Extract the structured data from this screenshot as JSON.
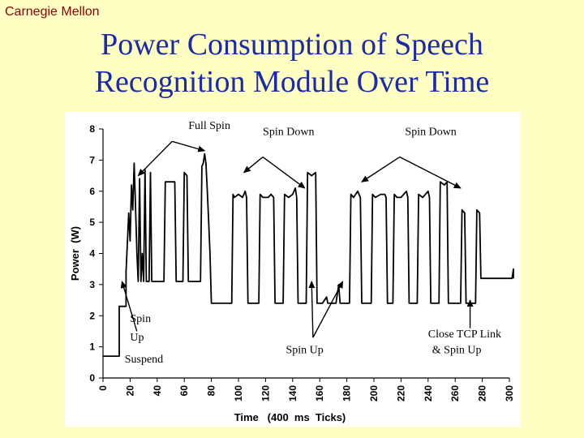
{
  "header": {
    "brand": "Carnegie Mellon",
    "title_line1": "Power Consumption of Speech",
    "title_line2": "Recognition Module Over Time"
  },
  "colors": {
    "title": "#1a2aa8",
    "brand": "#8b0000",
    "background": "#ffffc4",
    "line": "#000000"
  },
  "chart_data": {
    "type": "line",
    "xlabel": "Time   (400  ms  Ticks)",
    "ylabel": "Power  (W)",
    "xlim": [
      0,
      300
    ],
    "ylim": [
      0,
      8
    ],
    "xticks": [
      0,
      20,
      40,
      60,
      80,
      100,
      120,
      140,
      160,
      180,
      200,
      220,
      240,
      260,
      280,
      300
    ],
    "yticks": [
      0,
      1,
      2,
      3,
      4,
      5,
      6,
      7,
      8
    ],
    "grid": false,
    "series": [
      {
        "points": [
          [
            0,
            0.7
          ],
          [
            12,
            0.7
          ],
          [
            12,
            2.3
          ],
          [
            17,
            2.3
          ],
          [
            17,
            3.4
          ],
          [
            19,
            5.3
          ],
          [
            20,
            4.4
          ],
          [
            21,
            6.2
          ],
          [
            22,
            5.4
          ],
          [
            23,
            6.9
          ],
          [
            24,
            5.5
          ],
          [
            25,
            4.0
          ],
          [
            26,
            3.1
          ],
          [
            27,
            6.4
          ],
          [
            28,
            3.1
          ],
          [
            29,
            4.0
          ],
          [
            30,
            3.1
          ],
          [
            31,
            6.7
          ],
          [
            32,
            3.1
          ],
          [
            34,
            3.1
          ],
          [
            35,
            6.6
          ],
          [
            36,
            3.1
          ],
          [
            45,
            3.1
          ],
          [
            46,
            6.3
          ],
          [
            53,
            6.3
          ],
          [
            54,
            3.1
          ],
          [
            59,
            3.1
          ],
          [
            60,
            6.6
          ],
          [
            62,
            6.5
          ],
          [
            63,
            3.1
          ],
          [
            72,
            3.1
          ],
          [
            73,
            6.8
          ],
          [
            74,
            6.9
          ],
          [
            75,
            7.2
          ],
          [
            76,
            6.9
          ],
          [
            77,
            6.0
          ],
          [
            78,
            5.0
          ],
          [
            79,
            4.0
          ],
          [
            80,
            2.4
          ],
          [
            95,
            2.4
          ],
          [
            96,
            5.9
          ],
          [
            97,
            5.8
          ],
          [
            100,
            5.9
          ],
          [
            103,
            5.8
          ],
          [
            105,
            6.0
          ],
          [
            106,
            5.8
          ],
          [
            107,
            2.4
          ],
          [
            115,
            2.4
          ],
          [
            116,
            5.9
          ],
          [
            118,
            5.8
          ],
          [
            122,
            5.8
          ],
          [
            124,
            5.9
          ],
          [
            126,
            5.8
          ],
          [
            127,
            2.4
          ],
          [
            133,
            2.4
          ],
          [
            134,
            5.9
          ],
          [
            137,
            5.8
          ],
          [
            140,
            5.9
          ],
          [
            142,
            6.1
          ],
          [
            143,
            5.8
          ],
          [
            144,
            2.4
          ],
          [
            150,
            2.4
          ],
          [
            151,
            6.6
          ],
          [
            154,
            6.5
          ],
          [
            157,
            6.6
          ],
          [
            158,
            2.4
          ],
          [
            162,
            2.4
          ],
          [
            165,
            2.6
          ],
          [
            166,
            2.4
          ],
          [
            167,
            2.4
          ],
          [
            167,
            2.4
          ],
          [
            170,
            2.4
          ],
          [
            171,
            2.4
          ],
          [
            172,
            2.4
          ],
          [
            174,
            3.0
          ],
          [
            175,
            2.4
          ],
          [
            176,
            2.4
          ],
          [
            177,
            2.4
          ],
          [
            178,
            2.4
          ],
          [
            179,
            2.4
          ],
          [
            180,
            2.4
          ],
          [
            181,
            2.4
          ],
          [
            182,
            2.4
          ],
          [
            183,
            5.9
          ],
          [
            185,
            5.8
          ],
          [
            188,
            6.0
          ],
          [
            190,
            5.8
          ],
          [
            191,
            2.4
          ],
          [
            198,
            2.4
          ],
          [
            199,
            5.9
          ],
          [
            201,
            5.8
          ],
          [
            205,
            5.9
          ],
          [
            208,
            5.9
          ],
          [
            209,
            5.8
          ],
          [
            210,
            2.4
          ],
          [
            214,
            2.4
          ],
          [
            215,
            5.9
          ],
          [
            217,
            5.8
          ],
          [
            220,
            5.8
          ],
          [
            222,
            5.9
          ],
          [
            224,
            6.0
          ],
          [
            225,
            5.8
          ],
          [
            226,
            2.4
          ],
          [
            232,
            2.4
          ],
          [
            233,
            5.9
          ],
          [
            236,
            5.8
          ],
          [
            238,
            5.9
          ],
          [
            240,
            6.0
          ],
          [
            241,
            5.8
          ],
          [
            242,
            2.4
          ],
          [
            248,
            2.4
          ],
          [
            249,
            6.3
          ],
          [
            252,
            6.2
          ],
          [
            254,
            6.3
          ],
          [
            255,
            2.4
          ],
          [
            264,
            2.4
          ],
          [
            265,
            5.4
          ],
          [
            267,
            5.3
          ],
          [
            268,
            2.4
          ],
          [
            275,
            2.4
          ],
          [
            276,
            5.4
          ],
          [
            278,
            5.3
          ],
          [
            279,
            3.2
          ],
          [
            302,
            3.2
          ],
          [
            303,
            3.5
          ],
          [
            304,
            3.2
          ]
        ]
      }
    ],
    "annotations": [
      {
        "text": "Full Spin",
        "pos": [
          63,
          8.0
        ]
      },
      {
        "text": "Spin Down",
        "pos": [
          118,
          7.8
        ]
      },
      {
        "text": "Spin Down",
        "pos": [
          223,
          7.8
        ]
      },
      {
        "text": "Spin",
        "pos": [
          20,
          1.8
        ]
      },
      {
        "text": "Up",
        "pos": [
          20,
          1.2
        ]
      },
      {
        "text": "Suspend",
        "pos": [
          16,
          0.5
        ]
      },
      {
        "text": "Spin Up",
        "pos": [
          135,
          0.8
        ]
      },
      {
        "text": "Close TCP Link",
        "pos": [
          240,
          1.3
        ]
      },
      {
        "text": "& Spin Up",
        "pos": [
          243,
          0.8
        ]
      }
    ],
    "arrows": [
      {
        "from": [
          51,
          7.6
        ],
        "to": [
          26,
          6.5
        ]
      },
      {
        "from": [
          51,
          7.6
        ],
        "to": [
          75,
          7.3
        ]
      },
      {
        "from": [
          118,
          7.1
        ],
        "to": [
          104,
          6.6
        ]
      },
      {
        "from": [
          118,
          7.1
        ],
        "to": [
          149,
          6.1
        ]
      },
      {
        "from": [
          219,
          7.1
        ],
        "to": [
          191,
          6.3
        ]
      },
      {
        "from": [
          219,
          7.1
        ],
        "to": [
          264,
          6.1
        ]
      },
      {
        "from": [
          25,
          1.5
        ],
        "to": [
          14,
          3.1
        ]
      },
      {
        "from": [
          155,
          1.3
        ],
        "to": [
          154,
          3.1
        ]
      },
      {
        "from": [
          155,
          1.3
        ],
        "to": [
          177,
          3.1
        ]
      },
      {
        "from": [
          271,
          1.6
        ],
        "to": [
          271,
          2.5
        ]
      }
    ]
  }
}
